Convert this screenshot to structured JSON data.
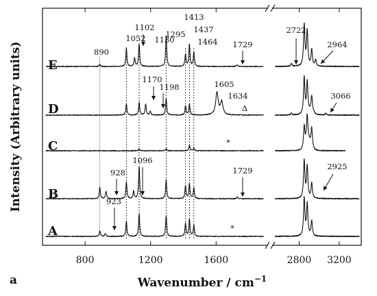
{
  "chart_data": {
    "type": "line",
    "panel_label": "a",
    "xlabel": "Wavenumber / cm",
    "xlabel_superscript": "−1",
    "ylabel": "Intensity (Arbitrary units)",
    "x_broken_axis": true,
    "x_segments": [
      {
        "range": [
          540,
          1900
        ],
        "ticks": [
          800,
          1200,
          1600
        ]
      },
      {
        "range": [
          2550,
          3420
        ],
        "ticks": [
          2800,
          3200
        ]
      }
    ],
    "guide_lines": {
      "dotted": [
        1052,
        1130,
        1295,
        1413,
        1437,
        1464
      ],
      "solid_light": [
        890
      ]
    },
    "series": [
      {
        "name": "A",
        "peaks": [
          [
            890,
            0.15
          ],
          [
            923,
            0.07
          ],
          [
            1052,
            0.4
          ],
          [
            1130,
            0.6
          ],
          [
            1295,
            0.55
          ],
          [
            1413,
            0.35
          ],
          [
            1437,
            0.45
          ],
          [
            1464,
            0.3
          ],
          [
            2850,
            1.0
          ],
          [
            2880,
            0.85
          ],
          [
            2925,
            0.4
          ]
        ]
      },
      {
        "name": "B",
        "peaks": [
          [
            890,
            0.3
          ],
          [
            928,
            0.2
          ],
          [
            1052,
            0.45
          ],
          [
            1096,
            0.2
          ],
          [
            1130,
            0.85
          ],
          [
            1295,
            0.5
          ],
          [
            1413,
            0.35
          ],
          [
            1437,
            0.4
          ],
          [
            1464,
            0.3
          ],
          [
            1729,
            0.05
          ],
          [
            2850,
            1.0
          ],
          [
            2880,
            0.85
          ],
          [
            2925,
            0.4
          ]
        ]
      },
      {
        "name": "C",
        "peaks": [
          [
            1130,
            0.05
          ],
          [
            1295,
            0.05
          ],
          [
            1437,
            0.15
          ],
          [
            1464,
            0.08
          ],
          [
            2850,
            0.55
          ],
          [
            2880,
            0.7
          ],
          [
            2925,
            0.5
          ]
        ]
      },
      {
        "name": "D",
        "peaks": [
          [
            1052,
            0.3
          ],
          [
            1130,
            0.35
          ],
          [
            1170,
            0.3
          ],
          [
            1198,
            0.1
          ],
          [
            1295,
            0.45
          ],
          [
            1413,
            0.25
          ],
          [
            1437,
            0.3
          ],
          [
            1605,
            0.6
          ],
          [
            1634,
            0.35
          ],
          [
            2722,
            0.05
          ],
          [
            2850,
            1.0
          ],
          [
            2880,
            0.85
          ],
          [
            2925,
            0.4
          ],
          [
            3066,
            0.05
          ]
        ]
      },
      {
        "name": "E",
        "peaks": [
          [
            890,
            0.05
          ],
          [
            1052,
            0.45
          ],
          [
            1102,
            0.2
          ],
          [
            1130,
            0.55
          ],
          [
            1295,
            0.75
          ],
          [
            1413,
            0.3
          ],
          [
            1437,
            0.55
          ],
          [
            1464,
            0.35
          ],
          [
            1729,
            0.05
          ],
          [
            2722,
            0.07
          ],
          [
            2850,
            1.0
          ],
          [
            2880,
            0.85
          ],
          [
            2925,
            0.4
          ],
          [
            2964,
            0.15
          ]
        ]
      }
    ],
    "annotations": [
      {
        "trace": "E",
        "text": "890",
        "x": 890,
        "arrow": false
      },
      {
        "trace": "E",
        "text": "1052",
        "x": 1052,
        "arrow": false
      },
      {
        "trace": "E",
        "text": "1102",
        "x": 1102,
        "arrow": true
      },
      {
        "trace": "E",
        "text": "1130",
        "x": 1130,
        "arrow": false
      },
      {
        "trace": "E",
        "text": "1295",
        "x": 1295,
        "arrow": false
      },
      {
        "trace": "E",
        "text": "1413",
        "x": 1413,
        "arrow": false
      },
      {
        "trace": "E",
        "text": "1437",
        "x": 1437,
        "arrow": false
      },
      {
        "trace": "E",
        "text": "1464",
        "x": 1464,
        "arrow": false
      },
      {
        "trace": "E",
        "text": "1729",
        "x": 1729,
        "arrow": true
      },
      {
        "trace": "E",
        "text": "2722",
        "x": 2722,
        "arrow": true
      },
      {
        "trace": "E",
        "text": "2964",
        "x": 2964,
        "arrow": true
      },
      {
        "trace": "D",
        "text": "1170",
        "x": 1170,
        "arrow": true
      },
      {
        "trace": "D",
        "text": "1198",
        "x": 1198,
        "arrow": true
      },
      {
        "trace": "D",
        "text": "1605",
        "x": 1605,
        "arrow": false
      },
      {
        "trace": "D",
        "text": "1634",
        "x": 1634,
        "arrow": false
      },
      {
        "trace": "D",
        "text": "Δ",
        "x": 1720,
        "arrow": false
      },
      {
        "trace": "D",
        "text": "3066",
        "x": 3066,
        "arrow": true
      },
      {
        "trace": "C",
        "text": "*",
        "x": 1660,
        "arrow": false
      },
      {
        "trace": "B",
        "text": "928",
        "x": 928,
        "arrow": true
      },
      {
        "trace": "B",
        "text": "1096",
        "x": 1096,
        "arrow": true
      },
      {
        "trace": "B",
        "text": "1729",
        "x": 1729,
        "arrow": true
      },
      {
        "trace": "B",
        "text": "2925",
        "x": 2925,
        "arrow": true
      },
      {
        "trace": "A",
        "text": "923",
        "x": 923,
        "arrow": true
      },
      {
        "trace": "A",
        "text": "*",
        "x": 1660,
        "arrow": false
      }
    ]
  }
}
